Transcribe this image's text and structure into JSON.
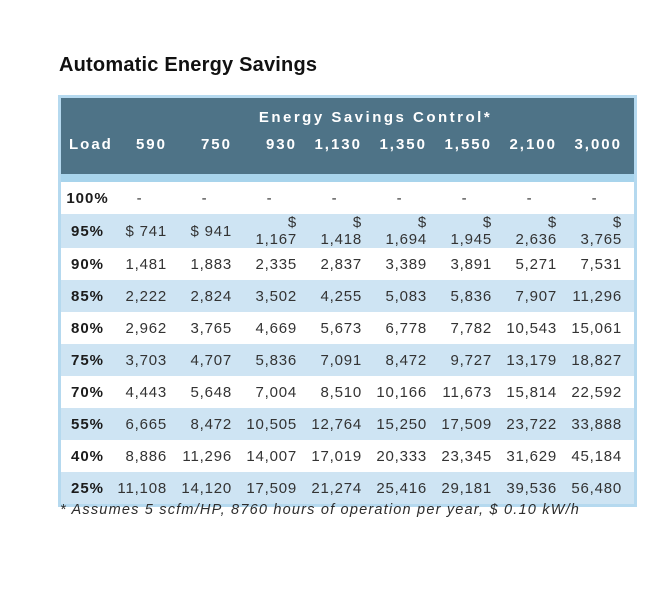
{
  "chart_data": {
    "type": "table",
    "title": "Automatic Energy Savings",
    "group_header": "Energy Savings Control*",
    "columns": [
      "Load",
      "590",
      "750",
      "930",
      "1,130",
      "1,350",
      "1,550",
      "2,100",
      "3,000"
    ],
    "rows": [
      [
        "100%",
        "-",
        "-",
        "-",
        "-",
        "-",
        "-",
        "-",
        "-"
      ],
      [
        "95%",
        "$ 741",
        "$ 941",
        "$ 1,167",
        "$ 1,418",
        "$ 1,694",
        "$ 1,945",
        "$ 2,636",
        "$ 3,765"
      ],
      [
        "90%",
        "1,481",
        "1,883",
        "2,335",
        "2,837",
        "3,389",
        "3,891",
        "5,271",
        "7,531"
      ],
      [
        "85%",
        "2,222",
        "2,824",
        "3,502",
        "4,255",
        "5,083",
        "5,836",
        "7,907",
        "11,296"
      ],
      [
        "80%",
        "2,962",
        "3,765",
        "4,669",
        "5,673",
        "6,778",
        "7,782",
        "10,543",
        "15,061"
      ],
      [
        "75%",
        "3,703",
        "4,707",
        "5,836",
        "7,091",
        "8,472",
        "9,727",
        "13,179",
        "18,827"
      ],
      [
        "70%",
        "4,443",
        "5,648",
        "7,004",
        "8,510",
        "10,166",
        "11,673",
        "15,814",
        "22,592"
      ],
      [
        "55%",
        "6,665",
        "8,472",
        "10,505",
        "12,764",
        "15,250",
        "17,509",
        "23,722",
        "33,888"
      ],
      [
        "40%",
        "8,886",
        "11,296",
        "14,007",
        "17,019",
        "20,333",
        "23,345",
        "31,629",
        "45,184"
      ],
      [
        "25%",
        "11,108",
        "14,120",
        "17,509",
        "21,274",
        "25,416",
        "29,181",
        "39,536",
        "56,480"
      ]
    ],
    "footnote": "* Assumes 5 scfm/HP, 8760 hours of operation per year, $ 0.10 kW/h"
  },
  "colors": {
    "header_bg": "#4e7387",
    "header_text": "#ffffff",
    "alt_row_bg": "#cee4f3",
    "separator": "#a8d4ec",
    "table_border": "#b5d9ef",
    "body_text": "#333333",
    "title_text": "#111111"
  }
}
